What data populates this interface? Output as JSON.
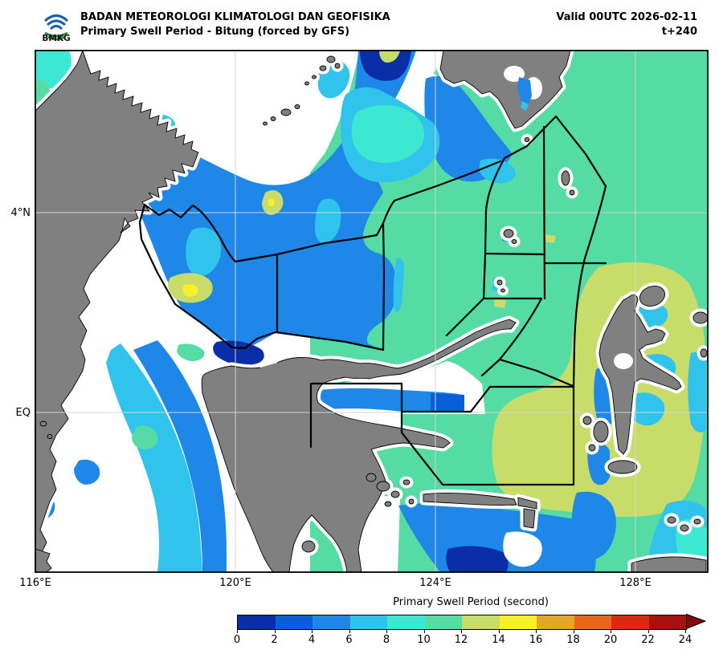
{
  "header": {
    "agency": "BADAN METEOROLOGI KLIMATOLOGI DAN GEOFISIKA",
    "product": "Primary Swell Period - Bitung (forced by GFS)",
    "valid": "Valid 00UTC 2026-02-11",
    "tstep": "t+240",
    "logo_label": "BMKG"
  },
  "map": {
    "y_axis_labels": [
      "4°N",
      "EQ"
    ],
    "x_axis_labels": [
      "116°E",
      "120°E",
      "124°E",
      "128°E"
    ]
  },
  "colorbar": {
    "title": "Primary Swell Period (second)",
    "ticks": [
      "0",
      "2",
      "4",
      "6",
      "8",
      "10",
      "12",
      "14",
      "16",
      "18",
      "20",
      "22",
      "24"
    ],
    "colors": [
      "#0a2da8",
      "#0a5fd8",
      "#1f87e8",
      "#30c4ec",
      "#3ce8d2",
      "#55dca4",
      "#c8dc6a",
      "#f8f028",
      "#e0a826",
      "#e8661c",
      "#dc2a12",
      "#a61210"
    ],
    "arrow_color": "#7e0a0a"
  },
  "palette": {
    "land": "#808080",
    "coast": "#000000",
    "grid": "#d4d4d4"
  }
}
